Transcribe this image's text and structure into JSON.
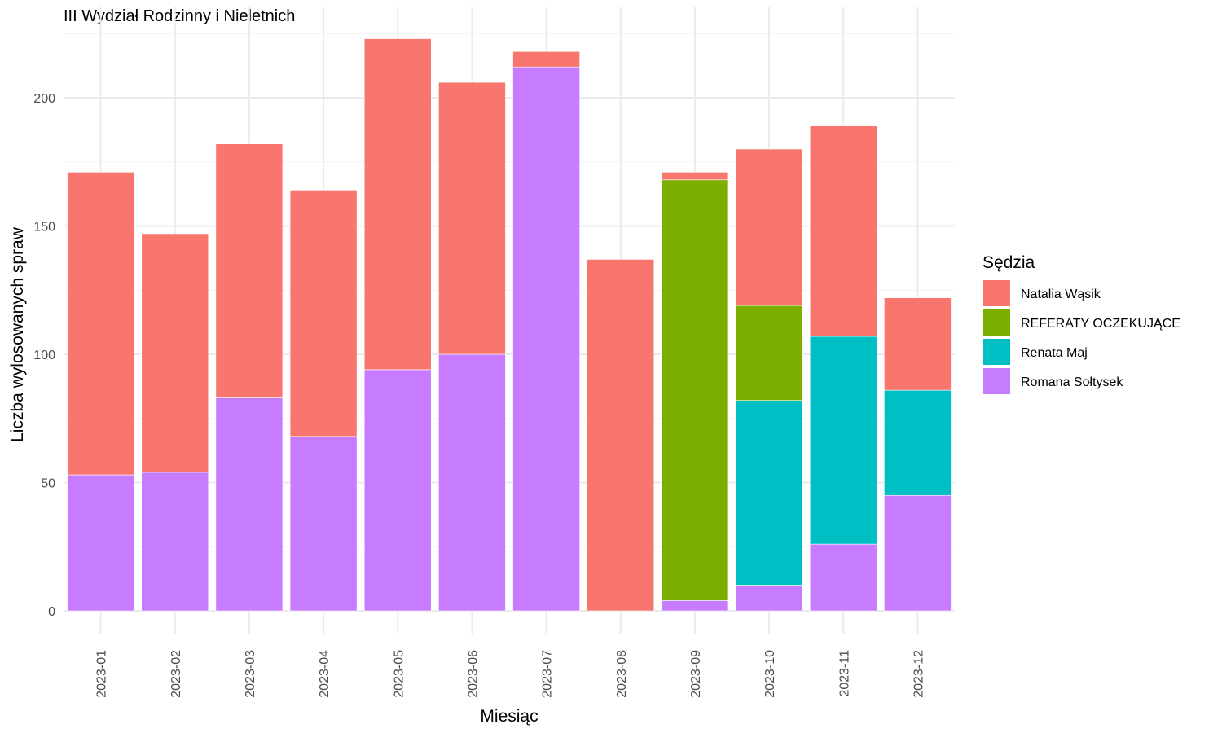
{
  "chart_data": {
    "type": "bar",
    "stacked": true,
    "title": "III Wydział Rodzinny i Nieletnich",
    "xlabel": "Miesiąc",
    "ylabel": "Liczba wylosowanych spraw",
    "ylim": [
      0,
      230
    ],
    "yticks": [
      0,
      50,
      100,
      150,
      200
    ],
    "grid": true,
    "legend_title": "Sędzia",
    "legend_position": "right",
    "categories": [
      "2023-01",
      "2023-02",
      "2023-03",
      "2023-04",
      "2023-05",
      "2023-06",
      "2023-07",
      "2023-08",
      "2023-09",
      "2023-10",
      "2023-11",
      "2023-12"
    ],
    "stack_order": [
      "Romana Sołtysek",
      "Renata Maj",
      "REFERATY OCZEKUJĄCE",
      "Natalia Wąsik"
    ],
    "series": [
      {
        "name": "Natalia Wąsik",
        "color": "#F8766D",
        "values": [
          118,
          93,
          99,
          96,
          129,
          106,
          6,
          137,
          3,
          61,
          82,
          36
        ]
      },
      {
        "name": "REFERATY OCZEKUJĄCE",
        "color": "#7CAE00",
        "values": [
          0,
          0,
          0,
          0,
          0,
          0,
          0,
          0,
          164,
          37,
          0,
          0
        ]
      },
      {
        "name": "Renata Maj",
        "color": "#00BFC4",
        "values": [
          0,
          0,
          0,
          0,
          0,
          0,
          0,
          0,
          0,
          72,
          81,
          41
        ]
      },
      {
        "name": "Romana Sołtysek",
        "color": "#C77CFF",
        "values": [
          53,
          54,
          83,
          68,
          94,
          100,
          212,
          0,
          4,
          10,
          26,
          45
        ]
      }
    ]
  }
}
